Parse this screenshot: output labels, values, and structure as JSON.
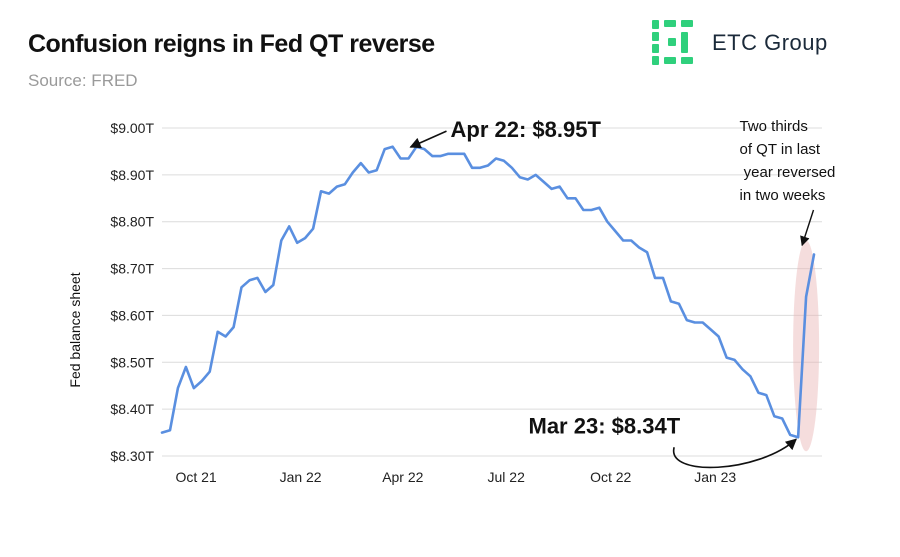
{
  "header": {
    "title": "Confusion reigns in Fed QT reverse",
    "subtitle": "Source: FRED",
    "brand": "ETC Group",
    "brand_color": "#2fd07c"
  },
  "chart_data": {
    "type": "line",
    "ylabel": "Fed balance sheet",
    "ylim": [
      8.3,
      9.0
    ],
    "yticks": [
      8.3,
      8.4,
      8.5,
      8.6,
      8.7,
      8.8,
      8.9,
      9.0
    ],
    "ytick_labels": [
      "$8.30T",
      "$8.40T",
      "$8.50T",
      "$8.60T",
      "$8.70T",
      "$8.80T",
      "$8.90T",
      "$9.00T"
    ],
    "xlim": [
      "2021-09-01",
      "2023-04-05"
    ],
    "xticks": [
      "2021-10-01",
      "2022-01-01",
      "2022-04-01",
      "2022-07-01",
      "2022-10-01",
      "2023-01-01"
    ],
    "xtick_labels": [
      "Oct 21",
      "Jan 22",
      "Apr 22",
      "Jul 22",
      "Oct 22",
      "Jan 23"
    ],
    "grid": "horizontal",
    "line_color": "#5a8fe0",
    "series": [
      {
        "x": [
          "2021-09-01",
          "2021-09-08",
          "2021-09-15",
          "2021-09-22",
          "2021-09-29",
          "2021-10-06",
          "2021-10-13",
          "2021-10-20",
          "2021-10-27",
          "2021-11-03",
          "2021-11-10",
          "2021-11-17",
          "2021-11-24",
          "2021-12-01",
          "2021-12-08",
          "2021-12-15",
          "2021-12-22",
          "2021-12-29",
          "2022-01-05",
          "2022-01-12",
          "2022-01-19",
          "2022-01-26",
          "2022-02-02",
          "2022-02-09",
          "2022-02-16",
          "2022-02-23",
          "2022-03-02",
          "2022-03-09",
          "2022-03-16",
          "2022-03-23",
          "2022-03-30",
          "2022-04-06",
          "2022-04-13",
          "2022-04-20",
          "2022-04-27",
          "2022-05-04",
          "2022-05-11",
          "2022-05-18",
          "2022-05-25",
          "2022-06-01",
          "2022-06-08",
          "2022-06-15",
          "2022-06-22",
          "2022-06-29",
          "2022-07-06",
          "2022-07-13",
          "2022-07-20",
          "2022-07-27",
          "2022-08-03",
          "2022-08-10",
          "2022-08-17",
          "2022-08-24",
          "2022-08-31",
          "2022-09-07",
          "2022-09-14",
          "2022-09-21",
          "2022-09-28",
          "2022-10-05",
          "2022-10-12",
          "2022-10-19",
          "2022-10-26",
          "2022-11-02",
          "2022-11-09",
          "2022-11-16",
          "2022-11-23",
          "2022-11-30",
          "2022-12-07",
          "2022-12-14",
          "2022-12-21",
          "2022-12-28",
          "2023-01-04",
          "2023-01-11",
          "2023-01-18",
          "2023-01-25",
          "2023-02-01",
          "2023-02-08",
          "2023-02-15",
          "2023-02-22",
          "2023-03-01",
          "2023-03-08",
          "2023-03-15",
          "2023-03-22",
          "2023-03-29"
        ],
        "y": [
          8.35,
          8.355,
          8.445,
          8.49,
          8.445,
          8.46,
          8.48,
          8.565,
          8.555,
          8.575,
          8.66,
          8.675,
          8.68,
          8.65,
          8.665,
          8.76,
          8.79,
          8.755,
          8.765,
          8.785,
          8.865,
          8.86,
          8.875,
          8.88,
          8.905,
          8.925,
          8.905,
          8.91,
          8.955,
          8.96,
          8.935,
          8.935,
          8.96,
          8.955,
          8.94,
          8.94,
          8.945,
          8.945,
          8.945,
          8.915,
          8.915,
          8.92,
          8.935,
          8.93,
          8.915,
          8.895,
          8.89,
          8.9,
          8.885,
          8.87,
          8.875,
          8.85,
          8.85,
          8.825,
          8.825,
          8.83,
          8.8,
          8.78,
          8.76,
          8.76,
          8.745,
          8.735,
          8.68,
          8.68,
          8.63,
          8.625,
          8.59,
          8.585,
          8.585,
          8.57,
          8.555,
          8.51,
          8.505,
          8.485,
          8.47,
          8.435,
          8.43,
          8.385,
          8.38,
          8.345,
          8.34,
          8.64,
          8.73
        ]
      }
    ],
    "annotations": [
      {
        "text": "Apr 22: $8.95T",
        "x": "2022-04-06",
        "y": 8.955
      },
      {
        "text": "Mar 23: $8.34T",
        "x": "2023-03-15",
        "y": 8.34
      },
      {
        "lines": [
          "Two thirds",
          "of QT in last",
          " year reversed",
          "in two weeks"
        ],
        "x": "2023-03-25",
        "y": 8.69
      }
    ]
  }
}
